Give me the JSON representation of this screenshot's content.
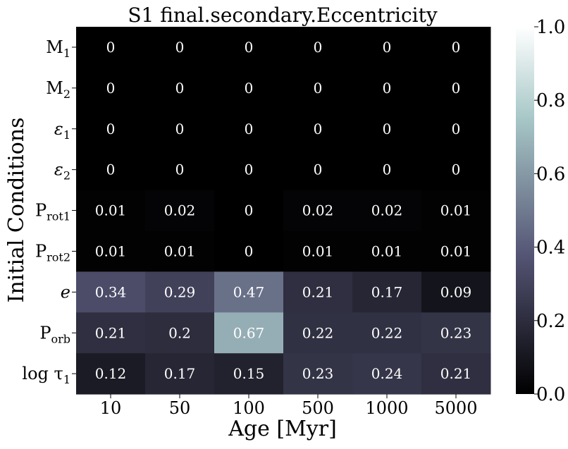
{
  "chart_data": {
    "type": "heatmap",
    "title": "S1 final.secondary.Eccentricity",
    "xlabel": "Age [Myr]",
    "ylabel": "Initial Conditions",
    "x_categories": [
      "10",
      "50",
      "100",
      "500",
      "1000",
      "5000"
    ],
    "y_categories": [
      {
        "base": "M",
        "sub": "1"
      },
      {
        "base": "M",
        "sub": "2"
      },
      {
        "base": "ε",
        "sub": "1"
      },
      {
        "base": "ε",
        "sub": "2"
      },
      {
        "base": "P",
        "sub": "rot1"
      },
      {
        "base": "P",
        "sub": "rot2"
      },
      {
        "base": "e",
        "sub": ""
      },
      {
        "base": "P",
        "sub": "orb"
      },
      {
        "base": "log τ",
        "sub": "1"
      }
    ],
    "values": [
      [
        0,
        0,
        0,
        0,
        0,
        0
      ],
      [
        0,
        0,
        0,
        0,
        0,
        0
      ],
      [
        0,
        0,
        0,
        0,
        0,
        0
      ],
      [
        0,
        0,
        0,
        0,
        0,
        0
      ],
      [
        0.01,
        0.02,
        0,
        0.02,
        0.02,
        0.01
      ],
      [
        0.01,
        0.01,
        0,
        0.01,
        0.01,
        0.01
      ],
      [
        0.34,
        0.29,
        0.47,
        0.21,
        0.17,
        0.09
      ],
      [
        0.21,
        0.2,
        0.67,
        0.22,
        0.22,
        0.23
      ],
      [
        0.12,
        0.17,
        0.15,
        0.23,
        0.24,
        0.21
      ]
    ],
    "labels": [
      [
        "0",
        "0",
        "0",
        "0",
        "0",
        "0"
      ],
      [
        "0",
        "0",
        "0",
        "0",
        "0",
        "0"
      ],
      [
        "0",
        "0",
        "0",
        "0",
        "0",
        "0"
      ],
      [
        "0",
        "0",
        "0",
        "0",
        "0",
        "0"
      ],
      [
        "0.01",
        "0.02",
        "0",
        "0.02",
        "0.02",
        "0.01"
      ],
      [
        "0.01",
        "0.01",
        "0",
        "0.01",
        "0.01",
        "0.01"
      ],
      [
        "0.34",
        "0.29",
        "0.47",
        "0.21",
        "0.17",
        "0.09"
      ],
      [
        "0.21",
        "0.2",
        "0.67",
        "0.22",
        "0.22",
        "0.23"
      ],
      [
        "0.12",
        "0.17",
        "0.15",
        "0.23",
        "0.24",
        "0.21"
      ]
    ],
    "colorbar": {
      "range": [
        0,
        1
      ],
      "ticks": [
        "0.0",
        "0.2",
        "0.4",
        "0.6",
        "0.8",
        "1.0"
      ],
      "colormap": "bone"
    }
  }
}
